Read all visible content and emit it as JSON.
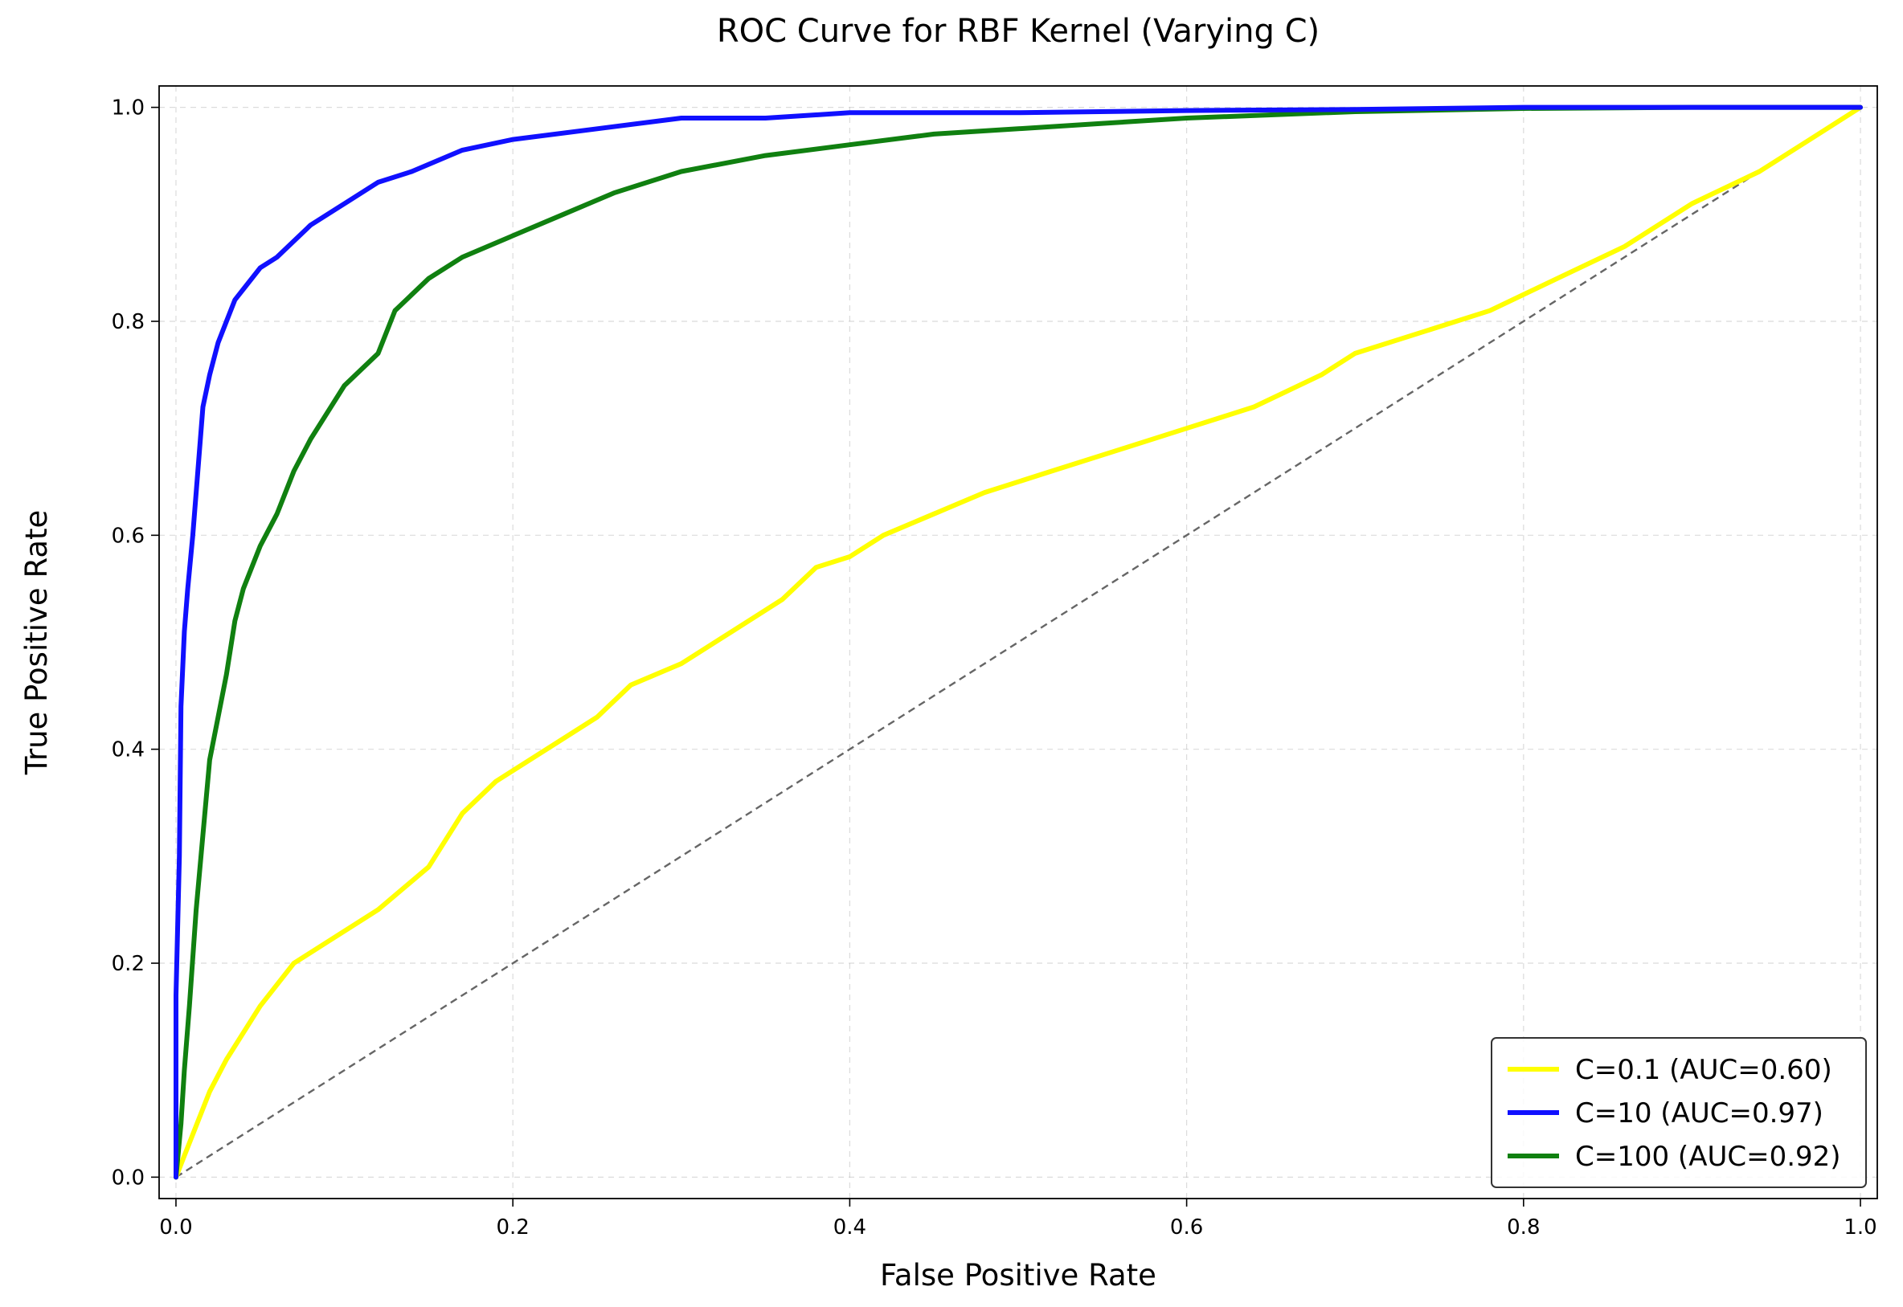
{
  "chart_data": {
    "type": "line",
    "title": "ROC Curve for RBF Kernel (Varying C)",
    "xlabel": "False Positive Rate",
    "ylabel": "True Positive Rate",
    "xlim": [
      -0.01,
      1.01
    ],
    "ylim": [
      -0.02,
      1.02
    ],
    "xticks": [
      0.0,
      0.2,
      0.4,
      0.6,
      0.8,
      1.0
    ],
    "xtick_labels": [
      "0.0",
      "0.2",
      "0.4",
      "0.6",
      "0.8",
      "1.0"
    ],
    "yticks": [
      0.0,
      0.2,
      0.4,
      0.6,
      0.8,
      1.0
    ],
    "ytick_labels": [
      "0.0",
      "0.2",
      "0.4",
      "0.6",
      "0.8",
      "1.0"
    ],
    "grid": true,
    "legend_position": "lower right",
    "series": [
      {
        "name": "C=0.1 (AUC=0.60)",
        "color": "#ffff00",
        "x": [
          0.0,
          0.005,
          0.01,
          0.02,
          0.03,
          0.05,
          0.07,
          0.09,
          0.12,
          0.15,
          0.17,
          0.19,
          0.22,
          0.25,
          0.27,
          0.3,
          0.33,
          0.36,
          0.38,
          0.4,
          0.42,
          0.45,
          0.48,
          0.52,
          0.56,
          0.6,
          0.64,
          0.68,
          0.7,
          0.74,
          0.78,
          0.82,
          0.86,
          0.9,
          0.94,
          0.97,
          1.0
        ],
        "y": [
          0.0,
          0.02,
          0.04,
          0.08,
          0.11,
          0.16,
          0.2,
          0.22,
          0.25,
          0.29,
          0.34,
          0.37,
          0.4,
          0.43,
          0.46,
          0.48,
          0.51,
          0.54,
          0.57,
          0.58,
          0.6,
          0.62,
          0.64,
          0.66,
          0.68,
          0.7,
          0.72,
          0.75,
          0.77,
          0.79,
          0.81,
          0.84,
          0.87,
          0.91,
          0.94,
          0.97,
          1.0
        ]
      },
      {
        "name": "C=10 (AUC=0.97)",
        "color": "#1010ff",
        "x": [
          0.0,
          0.0,
          0.002,
          0.003,
          0.005,
          0.007,
          0.01,
          0.013,
          0.016,
          0.02,
          0.025,
          0.03,
          0.035,
          0.04,
          0.05,
          0.06,
          0.08,
          0.1,
          0.12,
          0.14,
          0.17,
          0.2,
          0.25,
          0.3,
          0.35,
          0.4,
          0.5,
          0.6,
          0.7,
          0.8,
          0.9,
          1.0
        ],
        "y": [
          0.0,
          0.17,
          0.3,
          0.44,
          0.51,
          0.55,
          0.6,
          0.66,
          0.72,
          0.75,
          0.78,
          0.8,
          0.82,
          0.83,
          0.85,
          0.86,
          0.89,
          0.91,
          0.93,
          0.94,
          0.96,
          0.97,
          0.98,
          0.99,
          0.99,
          0.995,
          0.995,
          0.997,
          0.998,
          1.0,
          1.0,
          1.0
        ]
      },
      {
        "name": "C=100 (AUC=0.92)",
        "color": "#108010",
        "x": [
          0.0,
          0.003,
          0.005,
          0.008,
          0.012,
          0.016,
          0.02,
          0.025,
          0.03,
          0.035,
          0.04,
          0.05,
          0.06,
          0.07,
          0.08,
          0.1,
          0.12,
          0.13,
          0.15,
          0.17,
          0.2,
          0.23,
          0.26,
          0.3,
          0.35,
          0.4,
          0.45,
          0.5,
          0.55,
          0.6,
          0.65,
          0.7,
          0.8,
          0.9,
          1.0
        ],
        "y": [
          0.0,
          0.05,
          0.1,
          0.16,
          0.25,
          0.32,
          0.39,
          0.43,
          0.47,
          0.52,
          0.55,
          0.59,
          0.62,
          0.66,
          0.69,
          0.74,
          0.77,
          0.81,
          0.84,
          0.86,
          0.88,
          0.9,
          0.92,
          0.94,
          0.955,
          0.965,
          0.975,
          0.98,
          0.985,
          0.99,
          0.993,
          0.996,
          0.999,
          1.0,
          1.0
        ]
      },
      {
        "name": "",
        "color": "#666666",
        "style": "dashed",
        "x": [
          0.0,
          1.0
        ],
        "y": [
          0.0,
          1.0
        ]
      }
    ]
  }
}
